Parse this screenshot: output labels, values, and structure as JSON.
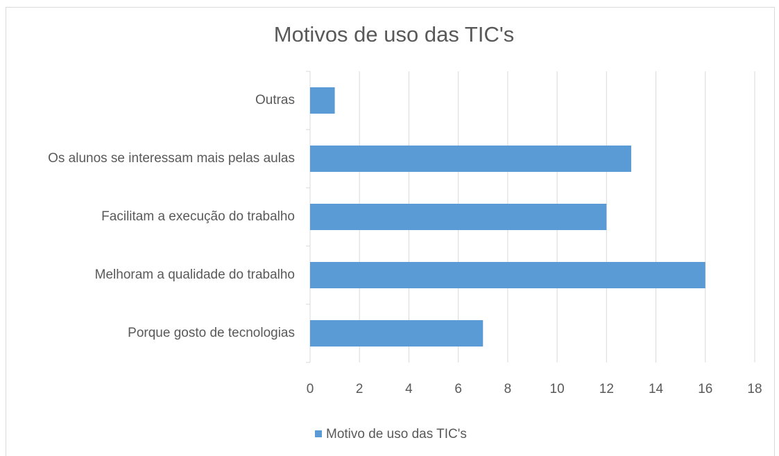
{
  "chart_data": {
    "type": "bar",
    "orientation": "horizontal",
    "title": "Motivos de uso das TIC's",
    "categories": [
      "Outras",
      "Os alunos se interessam mais pelas aulas",
      "Facilitam a execução do trabalho",
      "Melhoram a qualidade do trabalho",
      "Porque gosto de tecnologias"
    ],
    "series": [
      {
        "name": "Motivo de uso das TIC's",
        "color": "#5b9bd5",
        "values": [
          1,
          13,
          12,
          16,
          7
        ]
      }
    ],
    "xlim": [
      0,
      18
    ],
    "xticks": [
      0,
      2,
      4,
      6,
      8,
      10,
      12,
      14,
      16,
      18
    ],
    "grid": true,
    "legend": "bottom"
  }
}
